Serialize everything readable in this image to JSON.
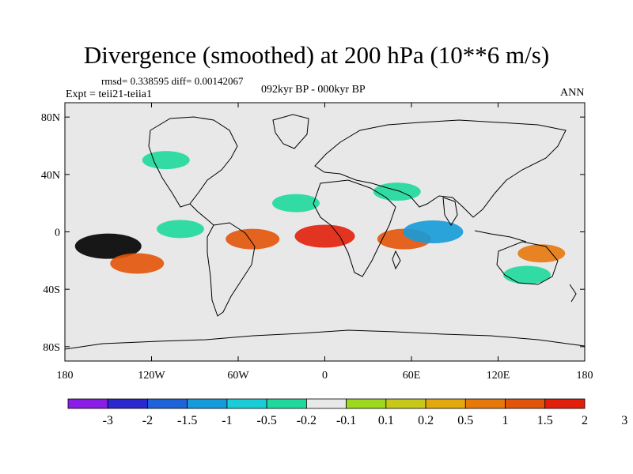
{
  "chart_data": {
    "type": "heatmap",
    "title": "Divergence (smoothed) at 200 hPa (10**6 m/s)",
    "stats_text": "rmsd= 0.338595 diff= 0.00142067",
    "experiment_text": "Expt = teii21-teiia1",
    "period_text": "092kyr BP - 000kyr BP",
    "season_text": "ANN",
    "projection": "cylindrical equidistant",
    "xlim": [
      -180,
      180
    ],
    "ylim": [
      -90,
      90
    ],
    "x_ticks": [
      {
        "value": -180,
        "label": "180"
      },
      {
        "value": -120,
        "label": "120W"
      },
      {
        "value": -60,
        "label": "60W"
      },
      {
        "value": 0,
        "label": "0"
      },
      {
        "value": 60,
        "label": "60E"
      },
      {
        "value": 120,
        "label": "120E"
      },
      {
        "value": 180,
        "label": "180"
      }
    ],
    "y_ticks": [
      {
        "value": 80,
        "label": "80N"
      },
      {
        "value": 40,
        "label": "40N"
      },
      {
        "value": 0,
        "label": "0"
      },
      {
        "value": -40,
        "label": "40S"
      },
      {
        "value": -80,
        "label": "80S"
      }
    ],
    "colorbar": {
      "colors": [
        "#8a1de6",
        "#2b28cf",
        "#1f63d8",
        "#159bd9",
        "#18cdd6",
        "#1fd99c",
        "#e8e8e8",
        "#9dd81c",
        "#c6c91a",
        "#e3a80e",
        "#e7780c",
        "#e25409",
        "#e21f0b"
      ],
      "labels": [
        "-3",
        "-2",
        "-1.5",
        "-1",
        "-0.5",
        "-0.2",
        "-0.1",
        "0.1",
        "0.2",
        "0.5",
        "1",
        "1.5",
        "2",
        "3"
      ]
    },
    "anomaly_features": [
      {
        "lon": -150,
        "lat": -10,
        "value": 2.0
      },
      {
        "lon": -130,
        "lat": -22,
        "value": 1.0
      },
      {
        "lon": -50,
        "lat": -5,
        "value": 1.0
      },
      {
        "lon": 0,
        "lat": -3,
        "value": 1.5
      },
      {
        "lon": 55,
        "lat": -5,
        "value": 1.0
      },
      {
        "lon": 150,
        "lat": -15,
        "value": 0.5
      },
      {
        "lon": 75,
        "lat": 0,
        "value": -1.5
      },
      {
        "lon": -100,
        "lat": 2,
        "value": -0.5
      },
      {
        "lon": -20,
        "lat": 20,
        "value": -0.5
      },
      {
        "lon": 50,
        "lat": 28,
        "value": -0.5
      },
      {
        "lon": -110,
        "lat": 50,
        "value": -0.5
      },
      {
        "lon": -40,
        "lat": 60,
        "value": -0.2
      },
      {
        "lon": 140,
        "lat": -30,
        "value": -0.5
      },
      {
        "lon": 30,
        "lat": 60,
        "value": -0.2
      }
    ]
  }
}
